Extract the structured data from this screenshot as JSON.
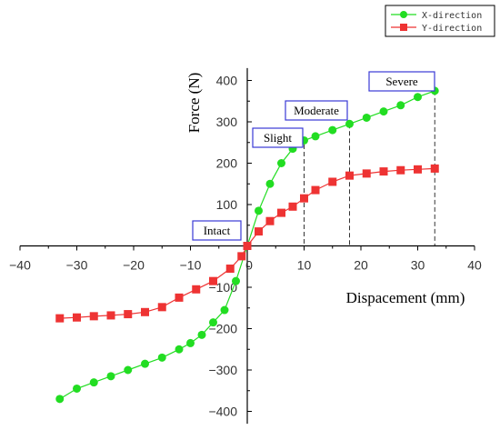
{
  "chart_data": {
    "type": "line",
    "title": "",
    "xlabel": "Dispacement (mm)",
    "ylabel": "Force (N)",
    "xlim": [
      -40,
      40
    ],
    "ylim": [
      -430,
      430
    ],
    "xticks": [
      -40,
      -30,
      -20,
      -10,
      0,
      10,
      20,
      30,
      40
    ],
    "xtick_labels": [
      "−40",
      "−30",
      "−20",
      "−10",
      "0",
      "10",
      "20",
      "30",
      "40"
    ],
    "yticks": [
      -400,
      -300,
      -200,
      -100,
      100,
      200,
      300,
      400
    ],
    "ytick_labels": [
      "−400",
      "−300",
      "−200",
      "−100",
      "100",
      "200",
      "300",
      "400"
    ],
    "legend_position": "top-right",
    "grid": false,
    "series": [
      {
        "name": "X-direction",
        "color": "#22dd22",
        "marker": "circle",
        "x": [
          -33,
          -30,
          -27,
          -24,
          -21,
          -18,
          -15,
          -12,
          -10,
          -8,
          -6,
          -4,
          -2,
          0,
          2,
          4,
          6,
          8,
          10,
          12,
          15,
          18,
          21,
          24,
          27,
          30,
          33
        ],
        "y": [
          -370,
          -345,
          -330,
          -315,
          -300,
          -285,
          -270,
          -250,
          -235,
          -215,
          -185,
          -155,
          -85,
          0,
          85,
          150,
          200,
          235,
          255,
          265,
          280,
          295,
          310,
          325,
          340,
          360,
          375
        ]
      },
      {
        "name": "Y-direction",
        "color": "#ee3333",
        "marker": "square",
        "x": [
          -33,
          -30,
          -27,
          -24,
          -21,
          -18,
          -15,
          -12,
          -9,
          -6,
          -3,
          -1,
          0,
          2,
          4,
          6,
          8,
          10,
          12,
          15,
          18,
          21,
          24,
          27,
          30,
          33
        ],
        "y": [
          -175,
          -173,
          -170,
          -168,
          -165,
          -160,
          -148,
          -125,
          -105,
          -85,
          -55,
          -25,
          0,
          35,
          60,
          80,
          95,
          115,
          135,
          155,
          170,
          175,
          180,
          183,
          185,
          187
        ]
      }
    ],
    "annotations": [
      {
        "text": "Intact",
        "x": 0,
        "y": 0,
        "dropline": false
      },
      {
        "text": "Slight",
        "x": 10,
        "y": 245,
        "dropline": true
      },
      {
        "text": "Moderate",
        "x": 18,
        "y": 295,
        "dropline": true
      },
      {
        "text": "Severe",
        "x": 33,
        "y": 375,
        "dropline": true
      }
    ]
  }
}
